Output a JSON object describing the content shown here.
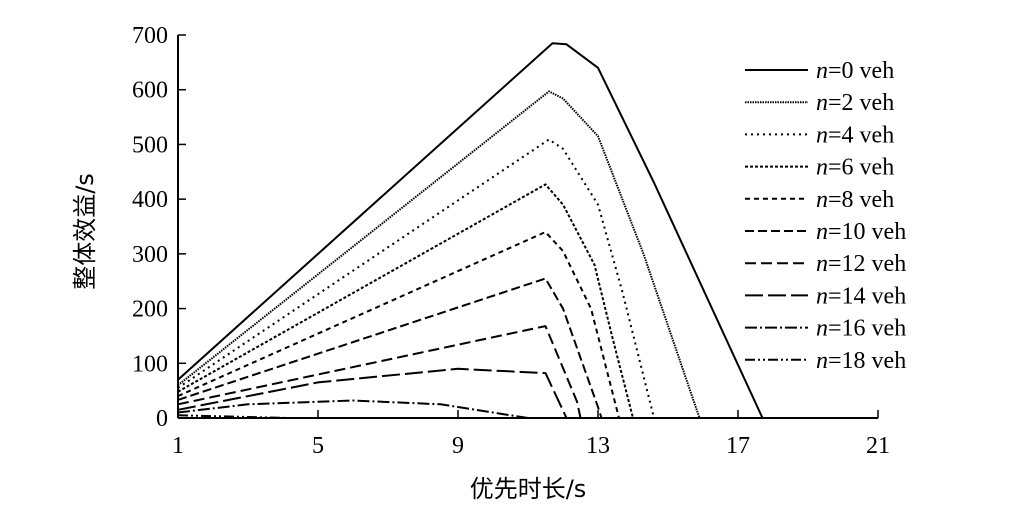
{
  "chart_data": {
    "type": "line",
    "xlabel": "优先时长/s",
    "ylabel": "整体效益/s",
    "xlim": [
      1,
      21
    ],
    "ylim": [
      0,
      700
    ],
    "xticks": [
      1,
      5,
      9,
      13,
      17,
      21
    ],
    "yticks": [
      0,
      100,
      200,
      300,
      400,
      500,
      600,
      700
    ],
    "grid": false,
    "legend_position": "right",
    "series": [
      {
        "name": "n=0 veh",
        "label_var": "n",
        "label_rest": "=0 veh",
        "dash": "solid",
        "x": [
          1,
          11.7,
          12.1,
          13,
          14.6,
          17.7
        ],
        "y": [
          70,
          685,
          683,
          640,
          430,
          0
        ]
      },
      {
        "name": "n=2 veh",
        "label_var": "n",
        "label_rest": "=2 veh",
        "dash": "dense-dot",
        "x": [
          1,
          11.6,
          12,
          13,
          14.3,
          15.9
        ],
        "y": [
          60,
          597,
          584,
          515,
          300,
          0
        ]
      },
      {
        "name": "n=4 veh",
        "label_var": "n",
        "label_rest": "=4 veh",
        "dash": "dot",
        "x": [
          1,
          11.6,
          12,
          13,
          13.7,
          14.6
        ],
        "y": [
          55,
          509,
          492,
          390,
          230,
          0
        ]
      },
      {
        "name": "n=6 veh",
        "label_var": "n",
        "label_rest": "=6 veh",
        "dash": "fine-dash",
        "x": [
          1,
          11.5,
          12,
          12.9,
          13.4,
          14
        ],
        "y": [
          48,
          427,
          390,
          280,
          150,
          0
        ]
      },
      {
        "name": "n=8 veh",
        "label_var": "n",
        "label_rest": "=8 veh",
        "dash": "short-dash",
        "x": [
          1,
          11.5,
          12,
          12.8,
          13.2,
          13.6
        ],
        "y": [
          40,
          340,
          305,
          200,
          100,
          0
        ]
      },
      {
        "name": "n=10 veh",
        "label_var": "n",
        "label_rest": "=10 veh",
        "dash": "dash",
        "x": [
          1,
          11.5,
          12,
          13,
          13.1
        ],
        "y": [
          33,
          255,
          200,
          20,
          0
        ]
      },
      {
        "name": "n=12 veh",
        "label_var": "n",
        "label_rest": "=12 veh",
        "dash": "medium-dash",
        "x": [
          1,
          11.5,
          12.4,
          12.5
        ],
        "y": [
          25,
          168,
          30,
          0
        ]
      },
      {
        "name": "n=14 veh",
        "label_var": "n",
        "label_rest": "=14 veh",
        "dash": "long-dash",
        "x": [
          1,
          5,
          9,
          11.5,
          12.1
        ],
        "y": [
          15,
          65,
          90,
          82,
          0
        ]
      },
      {
        "name": "n=16 veh",
        "label_var": "n",
        "label_rest": "=16 veh",
        "dash": "dash-dot",
        "x": [
          1,
          3,
          6,
          8.5,
          11
        ],
        "y": [
          10,
          25,
          32,
          25,
          0
        ]
      },
      {
        "name": "n=18 veh",
        "label_var": "n",
        "label_rest": "=18 veh",
        "dash": "dash-dot-dot",
        "x": [
          1,
          4.2
        ],
        "y": [
          5,
          0
        ]
      }
    ]
  }
}
